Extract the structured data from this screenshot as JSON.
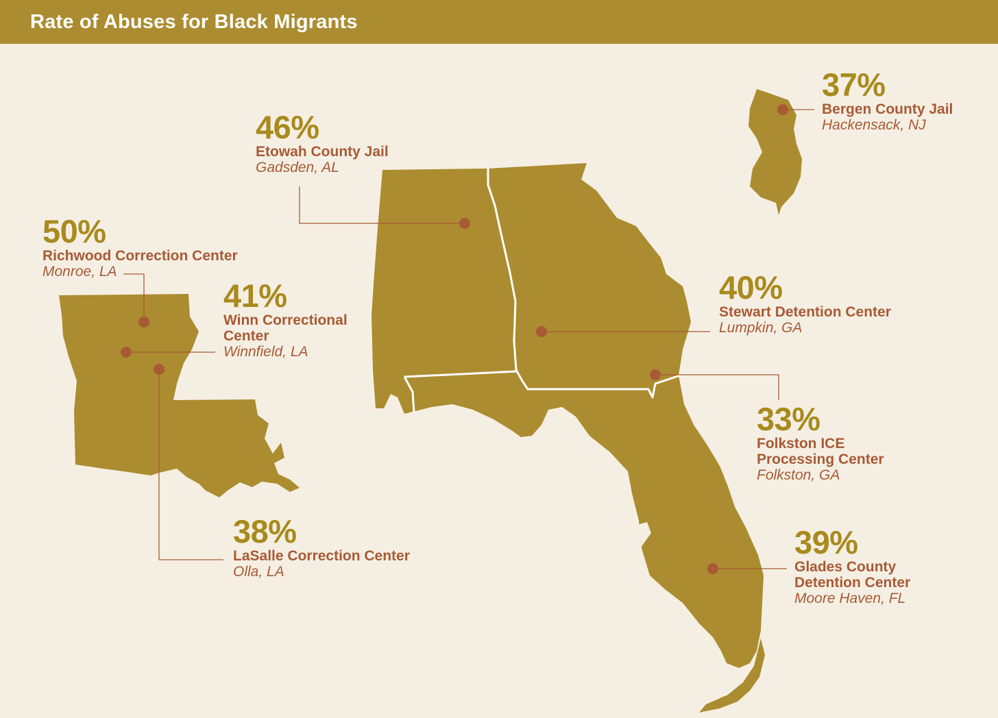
{
  "header": {
    "title": "Rate of Abuses for Black Migrants"
  },
  "colors": {
    "header": "#ab8c30",
    "land": "#ab8c30",
    "background": "#f5efe3",
    "accent_text": "#a85a35",
    "dot": "#a85a35"
  },
  "facilities": [
    {
      "pct": "50%",
      "name": "Richwood Correction Center",
      "name2": "",
      "city": "Monroe, LA"
    },
    {
      "pct": "41%",
      "name": "Winn Correctional",
      "name2": "Center",
      "city": "Winnfield, LA"
    },
    {
      "pct": "38%",
      "name": "LaSalle Correction Center",
      "name2": "",
      "city": "Olla, LA"
    },
    {
      "pct": "46%",
      "name": "Etowah County Jail",
      "name2": "",
      "city": "Gadsden, AL"
    },
    {
      "pct": "40%",
      "name": "Stewart Detention Center",
      "name2": "",
      "city": "Lumpkin, GA"
    },
    {
      "pct": "33%",
      "name": "Folkston ICE",
      "name2": "Processing Center",
      "city": "Folkston, GA"
    },
    {
      "pct": "39%",
      "name": "Glades County",
      "name2": "Detention Center",
      "city": "Moore Haven, FL"
    },
    {
      "pct": "37%",
      "name": "Bergen County Jail",
      "name2": "",
      "city": "Hackensack, NJ"
    }
  ]
}
